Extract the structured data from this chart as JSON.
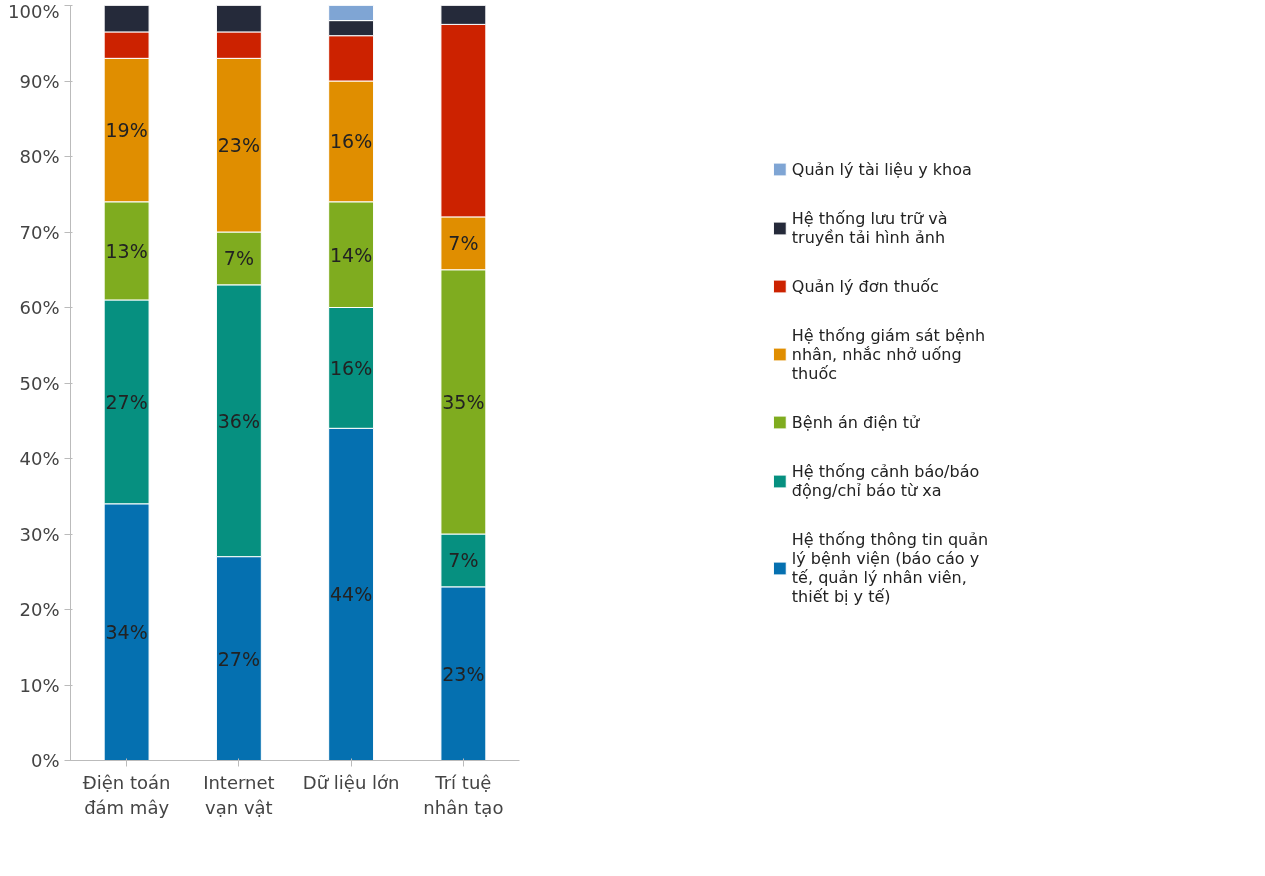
{
  "chart_data": {
    "type": "bar",
    "stacked": true,
    "categories": [
      "Điện toán đám mây",
      "Internet vạn vật",
      "Dữ liệu lớn",
      "Trí tuệ nhân tạo"
    ],
    "ylim": [
      0,
      100
    ],
    "yticks": [
      {
        "value": 0,
        "label": "0%"
      },
      {
        "value": 10,
        "label": "10%"
      },
      {
        "value": 20,
        "label": "20%"
      },
      {
        "value": 30,
        "label": "30%"
      },
      {
        "value": 40,
        "label": "40%"
      },
      {
        "value": 50,
        "label": "50%"
      },
      {
        "value": 60,
        "label": "60%"
      },
      {
        "value": 70,
        "label": "70%"
      },
      {
        "value": 80,
        "label": "80%"
      },
      {
        "value": 90,
        "label": "90%"
      },
      {
        "value": 100,
        "label": "100%"
      }
    ],
    "grid": false,
    "legend": "right",
    "series": [
      {
        "name": "Hệ thống thông tin quản lý bệnh viện (báo cáo y tế, quản lý nhân viên, thiết bị y tế)",
        "color": "#0570b0",
        "values": [
          34,
          27,
          44,
          23
        ],
        "value_labels": [
          "34%",
          "27%",
          "44%",
          "23%"
        ]
      },
      {
        "name": "Hệ thống cảnh báo/báo động/chỉ báo từ xa",
        "color": "#069080",
        "values": [
          27,
          36,
          16,
          7
        ],
        "value_labels": [
          "27%",
          "36%",
          "16%",
          "7%"
        ]
      },
      {
        "name": "Bệnh án điện tử",
        "color": "#7fac1f",
        "values": [
          13,
          7,
          14,
          35
        ],
        "value_labels": [
          "13%",
          "7%",
          "14%",
          "35%"
        ]
      },
      {
        "name": "Hệ thống giám sát bệnh nhân, nhắc nhở uống thuốc",
        "color": "#e08e00",
        "values": [
          19,
          23,
          16,
          7
        ],
        "value_labels": [
          "19%",
          "23%",
          "16%",
          "7%"
        ]
      },
      {
        "name": "Quản lý đơn thuốc",
        "color": "#cc2200",
        "values": [
          3.5,
          3.5,
          6,
          25.5
        ]
      },
      {
        "name": "Hệ thống lưu trữ và truyền tải hình ảnh",
        "color": "#252a3a",
        "values": [
          3.5,
          3.5,
          2,
          2.5
        ]
      },
      {
        "name": "Quản lý tài liệu y khoa",
        "color": "#7fa5d4",
        "values": [
          null,
          null,
          2,
          null
        ]
      }
    ]
  }
}
